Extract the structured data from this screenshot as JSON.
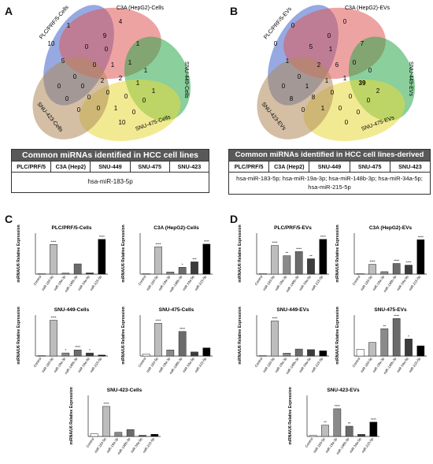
{
  "panels": {
    "a": "A",
    "b": "B",
    "c": "C",
    "d": "D"
  },
  "venn_a": {
    "sets": [
      "PLC/PRF/5-Cells",
      "C3A (HepG2)-Cells",
      "SNU-449-Cells",
      "SNU-475-Cells",
      "SNU-423-Cells"
    ],
    "counts": [
      "10",
      "1",
      "4",
      "9",
      "5",
      "0",
      "0",
      "1",
      "0",
      "0",
      "1",
      "1",
      "1",
      "0",
      "2",
      "2",
      "1",
      "1",
      "0",
      "0",
      "0",
      "0",
      "0",
      "0",
      "0",
      "1",
      "0",
      "10",
      "0"
    ]
  },
  "venn_b": {
    "sets": [
      "PLC/PRF/5-EVs",
      "C3A (HepG2)-EVs",
      "SNU-449-EVs",
      "SNU-475-EVs",
      "SNU-423-EVs"
    ],
    "counts": [
      "0",
      "0",
      "0",
      "0",
      "1",
      "5",
      "1",
      "7",
      "0",
      "2",
      "6",
      "0",
      "0",
      "1",
      "1",
      "1",
      "39",
      "2",
      "8",
      "8",
      "0",
      "0",
      "0",
      "0",
      "1",
      "0",
      "0",
      "0",
      "0"
    ]
  },
  "table_a": {
    "title": "Common miRNAs identified in HCC cell lines",
    "columns": [
      "PLC/PRF/5",
      "C3A (Hep2)",
      "SNU-449",
      "SNU-475",
      "SNU-423"
    ],
    "body": "hsa-miR-183-5p"
  },
  "table_b": {
    "title": "Common miRNAs identified in HCC cell lines-derived EVs",
    "columns": [
      "PLC/PRF/5",
      "C3A (Hep2)",
      "SNU-449",
      "SNU-475",
      "SNU-423"
    ],
    "body_line1": "hsa-miR-183-5p; hsa-miR-19a-3p; hsa-miR-148b-3p; hsa-miR-34a-5p;",
    "body_line2": "hsa-miR-215-5p"
  },
  "chart_data": [
    {
      "type": "bar",
      "title": "PLC/PRF/5-Cells",
      "ylabel": "miRNA/U6 Relative Expression",
      "categories": [
        "Control",
        "miR-183-5p",
        "miR-19a-3p",
        "miR-148b-3p",
        "miR-34a-5p",
        "miR-215-5p"
      ],
      "values": [
        1,
        145,
        5,
        50,
        6,
        170
      ],
      "ylim": [
        0,
        200
      ],
      "sig": [
        "",
        "****",
        "",
        "",
        "",
        "****"
      ]
    },
    {
      "type": "bar",
      "title": "C3A (HepG2)-Cells",
      "ylabel": "miRNA/U6 Relative Expression",
      "categories": [
        "Control",
        "miR-183-5p",
        "miR-19a-3p",
        "miR-148b-3p",
        "miR-34a-5p",
        "miR-215-5p"
      ],
      "values": [
        1,
        100,
        8,
        25,
        45,
        110
      ],
      "ylim": [
        0,
        150
      ],
      "sig": [
        "",
        "****",
        "",
        "*",
        "***",
        "****"
      ]
    },
    {
      "type": "bar",
      "title": "SNU-449-Cells",
      "ylabel": "miRNA/U6 Relative Expression",
      "categories": [
        "Control",
        "miR-183-5p",
        "miR-19a-3p",
        "miR-148b-3p",
        "miR-34a-5p",
        "miR-215-5p"
      ],
      "values": [
        1,
        70,
        6,
        12,
        6,
        2
      ],
      "ylim": [
        0,
        80
      ],
      "sig": [
        "",
        "****",
        "*",
        "****",
        "*",
        ""
      ]
    },
    {
      "type": "bar",
      "title": "SNU-475-Cells",
      "ylabel": "miRNA/U6 Relative Expression",
      "categories": [
        "Control",
        "miR-183-5p",
        "miR-19a-3p",
        "miR-148b-3p",
        "miR-34a-5p",
        "miR-215-5p"
      ],
      "values": [
        1,
        16,
        3,
        12,
        2,
        4
      ],
      "ylim": [
        0,
        20
      ],
      "sig": [
        "",
        "****",
        "",
        "****",
        "",
        ""
      ]
    },
    {
      "type": "bar",
      "title": "SNU-423-Cells",
      "ylabel": "miRNA/U6 Relative Expression",
      "categories": [
        "Control",
        "miR-183-5p",
        "miR-19a-3p",
        "miR-148b-3p",
        "miR-34a-5p",
        "miR-215-5p"
      ],
      "values": [
        1,
        11,
        1.5,
        2.5,
        0.4,
        0.8
      ],
      "ylim": [
        0,
        15
      ],
      "sig": [
        "",
        "****",
        "",
        "",
        "",
        ""
      ]
    },
    {
      "type": "bar",
      "title": "PLC/PRF/5-EVs",
      "ylabel": "miRNA/U6 Relative Expression",
      "categories": [
        "Control",
        "miR-183-5p",
        "miR-19a-3p",
        "miR-148b-3p",
        "miR-34a-5p",
        "miR-215-5p"
      ],
      "values": [
        1,
        280,
        180,
        220,
        150,
        340
      ],
      "ylim": [
        0,
        400
      ],
      "sig": [
        "",
        "****",
        "**",
        "****",
        "**",
        "****"
      ]
    },
    {
      "type": "bar",
      "title": "C3A (HepG2)-EVs",
      "ylabel": "miRNA/U6 Relative Expression",
      "categories": [
        "Control",
        "miR-183-5p",
        "miR-19a-3p",
        "miR-148b-3p",
        "miR-34a-5p",
        "miR-215-5p"
      ],
      "values": [
        1,
        600,
        150,
        650,
        550,
        2100
      ],
      "ylim": [
        0,
        2500
      ],
      "sig": [
        "",
        "****",
        "",
        "****",
        "****",
        "****"
      ]
    },
    {
      "type": "bar",
      "title": "SNU-449-EVs",
      "ylabel": "miRNA/U6 Relative Expression",
      "categories": [
        "Control",
        "miR-183-5p",
        "miR-19a-3p",
        "miR-148b-3p",
        "miR-34a-5p",
        "miR-215-5p"
      ],
      "values": [
        1,
        60,
        5,
        12,
        11,
        9
      ],
      "ylim": [
        0,
        70
      ],
      "sig": [
        "",
        "****",
        "",
        "",
        "",
        ""
      ]
    },
    {
      "type": "bar",
      "title": "SNU-475-EVs",
      "ylabel": "miRNA/U6 Relative Expression",
      "categories": [
        "Control",
        "miR-183-5p",
        "miR-19a-3p",
        "miR-148b-3p",
        "miR-34a-5p",
        "miR-215-5p"
      ],
      "values": [
        1,
        2,
        4,
        5.5,
        2.5,
        1.5
      ],
      "ylim": [
        0,
        6
      ],
      "sig": [
        "",
        "",
        "**",
        "****",
        "*",
        ""
      ]
    },
    {
      "type": "bar",
      "title": "SNU-423-EVs",
      "ylabel": "miRNA/U6 Relative Expression",
      "categories": [
        "Control",
        "miR-183-5p",
        "miR-19a-3p",
        "miR-148b-3p",
        "miR-34a-5p",
        "miR-215-5p"
      ],
      "values": [
        1,
        11,
        27,
        10,
        2,
        14
      ],
      "ylim": [
        0,
        40
      ],
      "sig": [
        "",
        "**",
        "****",
        "**",
        "",
        "****"
      ]
    }
  ],
  "colors": {
    "blue": "#3f63c9",
    "red": "#e05757",
    "green": "#2aa84a",
    "yellow": "#e7d93a",
    "tan": "#b08a5b",
    "bars": [
      "#ffffff",
      "#bdbdbd",
      "#8a8a8a",
      "#6b6b6b",
      "#3c3c3c",
      "#000000"
    ]
  }
}
